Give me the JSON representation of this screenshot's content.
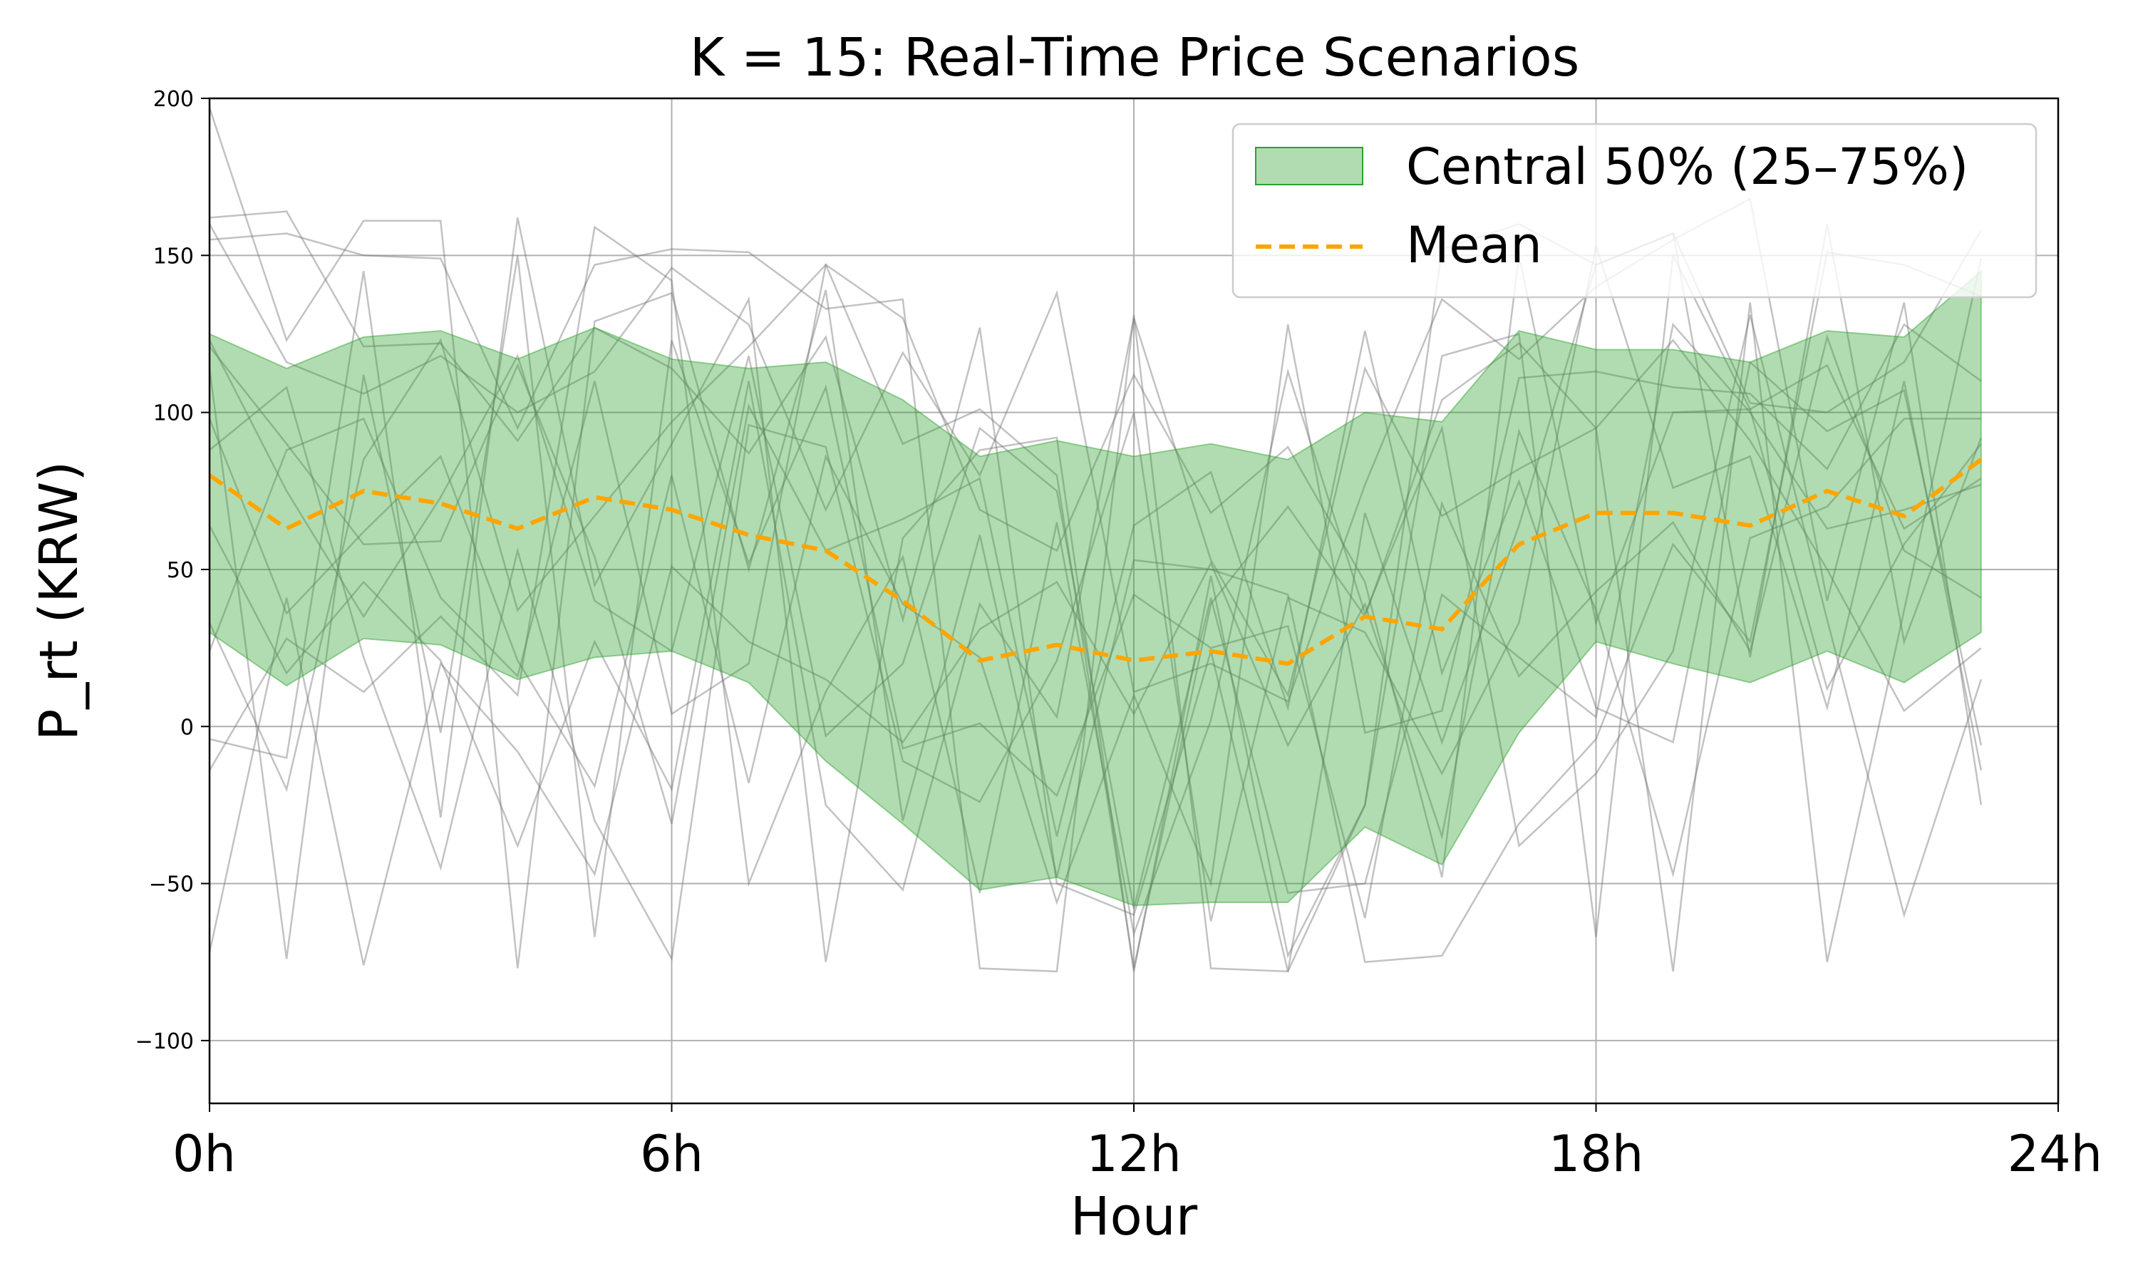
{
  "chart_data": {
    "type": "line",
    "title": "K = 15: Real-Time Price Scenarios",
    "xlabel": "Hour",
    "ylabel": "P_rt (KRW)",
    "xlim": [
      0,
      24
    ],
    "ylim": [
      -120,
      200
    ],
    "x_ticks": [
      0,
      6,
      12,
      18,
      24
    ],
    "x_tick_labels": [
      "0h",
      "6h",
      "12h",
      "18h",
      "24h"
    ],
    "y_ticks": [
      -100,
      -50,
      0,
      50,
      100,
      150,
      200
    ],
    "y_tick_labels": [
      "−100",
      "−50",
      "0",
      "50",
      "100",
      "150",
      "200"
    ],
    "grid": true,
    "legend_position": "top-right",
    "x": [
      0,
      1,
      2,
      3,
      4,
      5,
      6,
      7,
      8,
      9,
      10,
      11,
      12,
      13,
      14,
      15,
      16,
      17,
      18,
      19,
      20,
      21,
      22,
      23
    ],
    "band": {
      "name": "Central 50% (25–75%)",
      "color": "#2ca02c",
      "upper": [
        125,
        114,
        124,
        126,
        117,
        127,
        117,
        114,
        116,
        104,
        86,
        91,
        86,
        90,
        85,
        100,
        97,
        126,
        120,
        120,
        116,
        126,
        124,
        145
      ],
      "lower": [
        30,
        13,
        28,
        26,
        15,
        22,
        24,
        14,
        -11,
        -31,
        -52,
        -48,
        -57,
        -56,
        -56,
        -32,
        -44,
        -2,
        27,
        20,
        14,
        24,
        14,
        30
      ]
    },
    "mean": {
      "name": "Mean",
      "color": "#ffa500",
      "values": [
        80,
        63,
        75,
        71,
        63,
        73,
        69,
        61,
        56,
        40,
        21,
        26,
        21,
        24,
        20,
        35,
        31,
        58,
        68,
        68,
        64,
        75,
        67,
        85
      ]
    },
    "scenario_color": "#777777",
    "scenarios": [
      [
        162,
        164,
        121,
        122,
        91,
        127,
        114,
        87,
        124,
        34,
        127,
        -50,
        -60,
        24,
        -78,
        68,
        -5,
        64,
        147,
        157,
        22,
        160,
        27,
        92
      ],
      [
        155,
        157,
        150,
        149,
        95,
        147,
        152,
        151,
        133,
        136,
        -77,
        -78,
        131,
        -77,
        -78,
        -25,
        152,
        160,
        147,
        157,
        103,
        100,
        116,
        158
      ],
      [
        160,
        116,
        106,
        118,
        100,
        113,
        146,
        128,
        69,
        119,
        80,
        138,
        11,
        20,
        8,
        77,
        136,
        117,
        140,
        155,
        168,
        40,
        135,
        -25
      ],
      [
        197,
        123,
        161,
        161,
        -77,
        129,
        138,
        50,
        139,
        -30,
        61,
        -48,
        53,
        50,
        42,
        -75,
        -73,
        -31,
        -4,
        58,
        27,
        151,
        147,
        137
      ],
      [
        -4,
        -10,
        145,
        -29,
        162,
        45,
        90,
        136,
        -75,
        60,
        88,
        92,
        -78,
        48,
        -73,
        -25,
        118,
        125,
        -67,
        150,
        101,
        12,
        58,
        90
      ],
      [
        -72,
        41,
        -76,
        20,
        -8,
        -47,
        51,
        27,
        15,
        -5,
        31,
        46,
        4,
        52,
        -6,
        39,
        -35,
        94,
        37,
        -47,
        60,
        70,
        98,
        98
      ],
      [
        123,
        75,
        35,
        73,
        118,
        40,
        24,
        118,
        -3,
        20,
        95,
        75,
        -58,
        41,
        -53,
        -50,
        42,
        22,
        3,
        128,
        100,
        63,
        69,
        77
      ],
      [
        114,
        -74,
        112,
        -2,
        150,
        -67,
        123,
        52,
        108,
        -7,
        1,
        -22,
        42,
        25,
        32,
        -61,
        71,
        16,
        43,
        65,
        24,
        124,
        56,
        41
      ],
      [
        88,
        108,
        22,
        -45,
        56,
        -30,
        -74,
        96,
        89,
        -11,
        -24,
        21,
        100,
        -62,
        41,
        30,
        -15,
        33,
        153,
        76,
        86,
        6,
        110,
        -14
      ],
      [
        64,
        17,
        46,
        21,
        -38,
        27,
        -20,
        110,
        -25,
        -52,
        39,
        3,
        130,
        53,
        10,
        114,
        67,
        82,
        95,
        -78,
        135,
        -75,
        37,
        149
      ],
      [
        -14,
        28,
        11,
        35,
        10,
        159,
        142,
        -50,
        11,
        54,
        -53,
        65,
        -66,
        2,
        113,
        36,
        95,
        -38,
        -15,
        24,
        131,
        34,
        -60,
        15
      ],
      [
        33,
        -20,
        85,
        123,
        37,
        67,
        97,
        121,
        147,
        90,
        101,
        80,
        -77,
        39,
        70,
        35,
        104,
        122,
        95,
        123,
        91,
        50,
        5,
        25
      ],
      [
        98,
        36,
        62,
        86,
        21,
        -19,
        80,
        -18,
        86,
        39,
        22,
        -56,
        10,
        -50,
        128,
        -2,
        5,
        111,
        113,
        108,
        106,
        82,
        128,
        110
      ],
      [
        121,
        90,
        58,
        59,
        115,
        54,
        -31,
        102,
        56,
        66,
        79,
        -35,
        64,
        81,
        6,
        126,
        17,
        78,
        6,
        -5,
        116,
        94,
        107,
        -6
      ],
      [
        24,
        88,
        98,
        41,
        16,
        110,
        4,
        20,
        147,
        130,
        69,
        56,
        112,
        68,
        89,
        46,
        -48,
        150,
        33,
        100,
        101,
        115,
        63,
        79
      ]
    ]
  }
}
